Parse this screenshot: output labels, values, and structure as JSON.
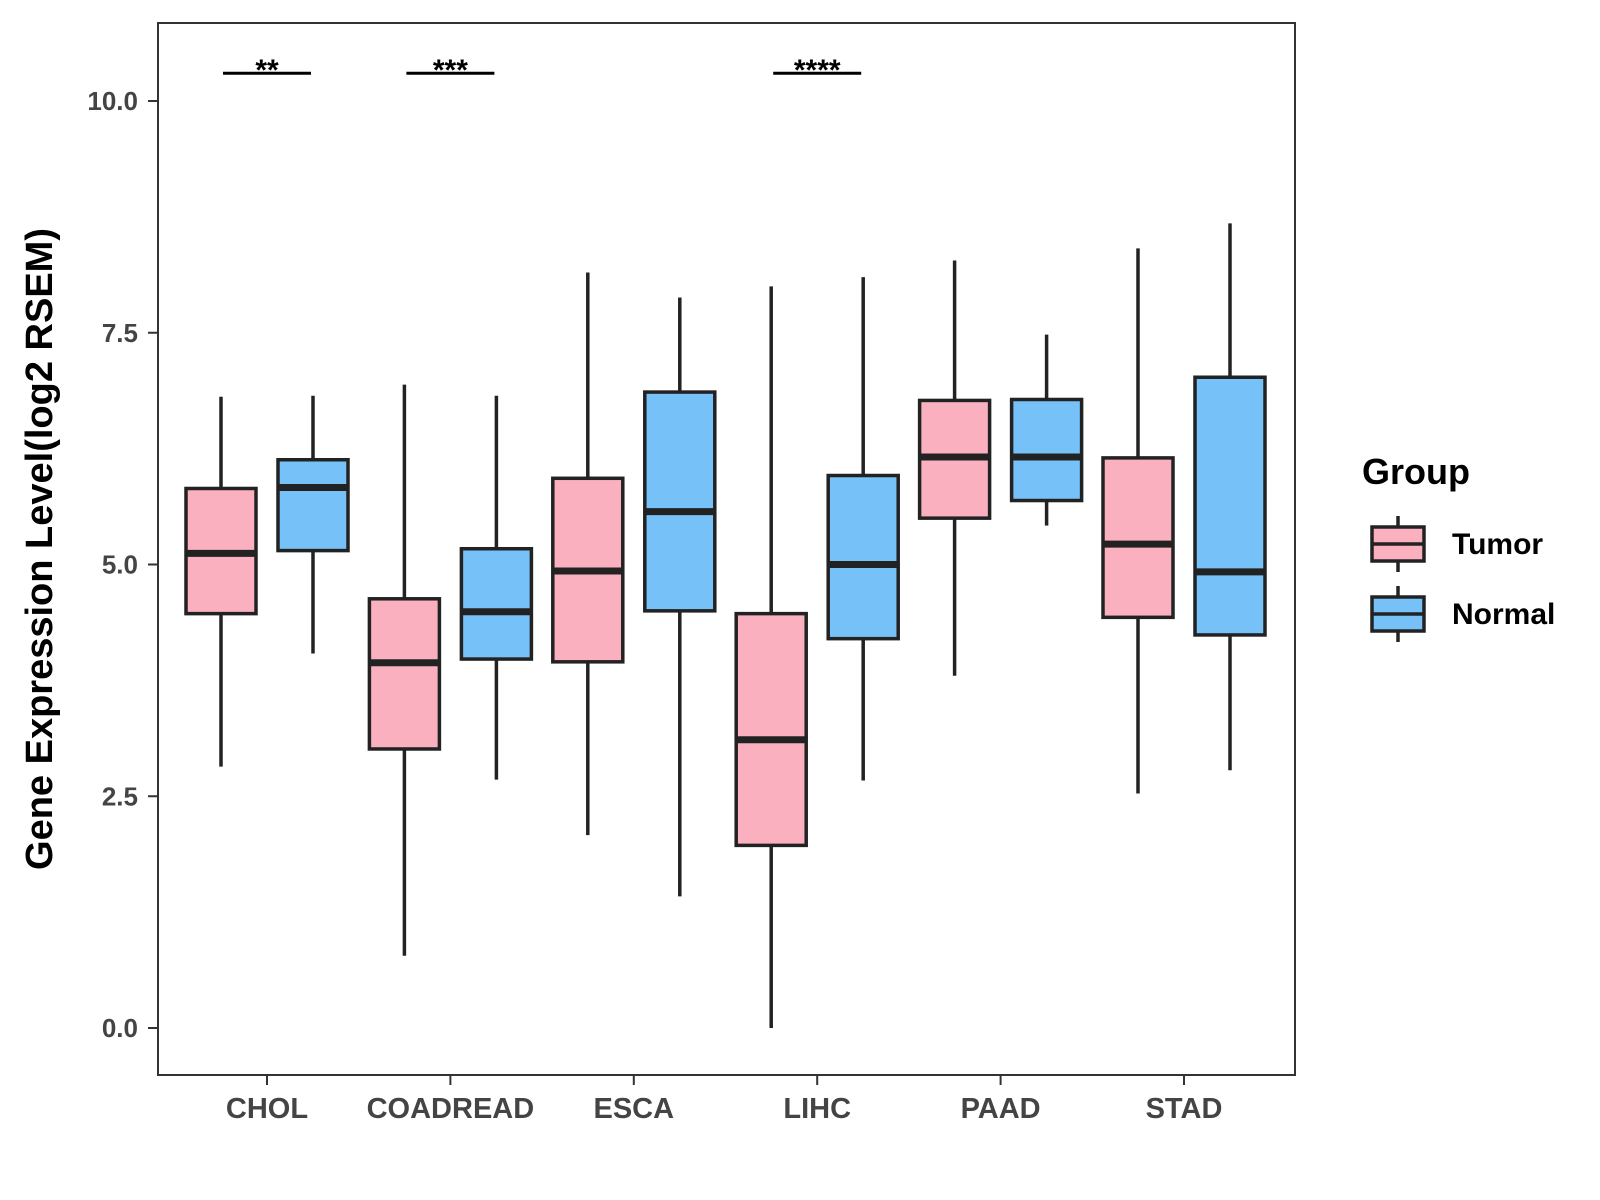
{
  "chart_data": {
    "type": "boxplot",
    "title": "",
    "xlabel": "",
    "ylabel": "Gene Expression Level(log2 RSEM)",
    "ylim": [
      -0.5,
      10.85
    ],
    "y_ticks": [
      0.0,
      2.5,
      5.0,
      7.5,
      10.0
    ],
    "y_tick_labels": [
      "0.0",
      "2.5",
      "5.0",
      "7.5",
      "10.0"
    ],
    "grid": false,
    "categories": [
      "CHOL",
      "COADREAD",
      "ESCA",
      "LIHC",
      "PAAD",
      "STAD"
    ],
    "legend": {
      "title": "Group",
      "position": "right",
      "entries": [
        "Tumor",
        "Normal"
      ]
    },
    "series": [
      {
        "name": "Tumor",
        "color": "#FBB0C0",
        "boxes": [
          {
            "min": 2.82,
            "q1": 4.47,
            "median": 5.12,
            "q3": 5.82,
            "max": 6.81
          },
          {
            "min": 0.78,
            "q1": 3.01,
            "median": 3.94,
            "q3": 4.63,
            "max": 6.94
          },
          {
            "min": 2.08,
            "q1": 3.95,
            "median": 4.93,
            "q3": 5.93,
            "max": 8.15
          },
          {
            "min": 0.0,
            "q1": 1.97,
            "median": 3.11,
            "q3": 4.47,
            "max": 8.0
          },
          {
            "min": 3.8,
            "q1": 5.5,
            "median": 6.16,
            "q3": 6.77,
            "max": 8.28
          },
          {
            "min": 2.53,
            "q1": 4.43,
            "median": 5.22,
            "q3": 6.15,
            "max": 8.41
          }
        ]
      },
      {
        "name": "Normal",
        "color": "#76C1F7",
        "boxes": [
          {
            "min": 4.04,
            "q1": 5.15,
            "median": 5.83,
            "q3": 6.13,
            "max": 6.82
          },
          {
            "min": 2.68,
            "q1": 3.98,
            "median": 4.49,
            "q3": 5.17,
            "max": 6.82
          },
          {
            "min": 1.42,
            "q1": 4.5,
            "median": 5.57,
            "q3": 6.86,
            "max": 7.88
          },
          {
            "min": 2.67,
            "q1": 4.2,
            "median": 5.0,
            "q3": 5.96,
            "max": 8.1
          },
          {
            "min": 5.42,
            "q1": 5.69,
            "median": 6.16,
            "q3": 6.78,
            "max": 7.48
          },
          {
            "min": 2.78,
            "q1": 4.24,
            "median": 4.92,
            "q3": 7.02,
            "max": 8.68
          }
        ]
      }
    ],
    "significance": [
      {
        "category": "CHOL",
        "label": "**",
        "y": 10.3
      },
      {
        "category": "COADREAD",
        "label": "***",
        "y": 10.3
      },
      {
        "category": "LIHC",
        "label": "****",
        "y": 10.3
      }
    ]
  }
}
